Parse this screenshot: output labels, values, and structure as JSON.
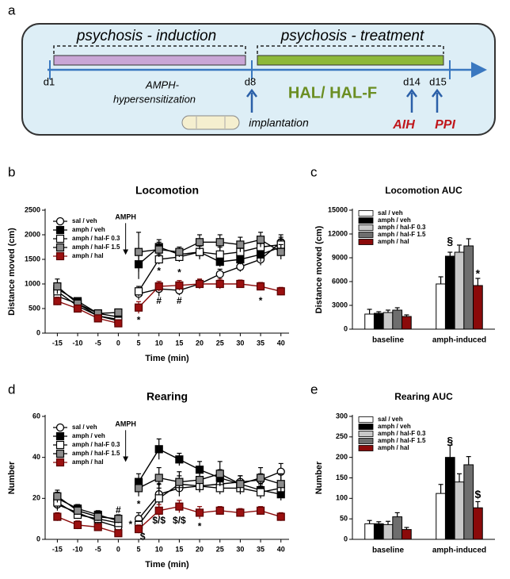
{
  "diagram": {
    "panel_label": "a",
    "phases": [
      "psychosis - induction",
      "psychosis - treatment"
    ],
    "days": [
      "d1",
      "d8",
      "d14",
      "d15"
    ],
    "induction_label": [
      "AMPH-",
      "hypersensitization"
    ],
    "treatment_label": "HAL/ HAL-F",
    "implant_label": "implantation",
    "tests": [
      "AIH",
      "PPI"
    ]
  },
  "chart_data": [
    {
      "type": "line",
      "panel_label": "b",
      "title": "Locomotion",
      "xlabel": "Time (min)",
      "ylabel": "Distance moved (cm)",
      "x": [
        -15,
        -10,
        -5,
        0,
        5,
        10,
        15,
        20,
        25,
        30,
        35,
        40
      ],
      "xlim": [
        -18,
        42
      ],
      "xticks": [
        -15,
        -10,
        -5,
        0,
        5,
        10,
        15,
        20,
        25,
        30,
        35,
        40
      ],
      "ylim": [
        0,
        2500
      ],
      "yticks": [
        0,
        500,
        1000,
        1500,
        2000,
        2500
      ],
      "legend": "upper left",
      "series": [
        {
          "name": "sal / veh",
          "color": "#ffffff",
          "marker": "o",
          "values": [
            750,
            600,
            350,
            280,
            800,
            900,
            870,
            1000,
            1200,
            1350,
            1500,
            1850
          ],
          "errors": [
            80,
            50,
            40,
            40,
            120,
            150,
            100,
            80,
            100,
            100,
            120,
            150
          ]
        },
        {
          "name": "amph / veh",
          "color": "#000000",
          "marker": "s",
          "values": [
            900,
            650,
            400,
            330,
            1400,
            1750,
            1600,
            1650,
            1450,
            1500,
            1600,
            1750
          ],
          "errors": [
            100,
            50,
            40,
            40,
            300,
            150,
            100,
            120,
            100,
            100,
            150,
            150
          ]
        },
        {
          "name": "amph / hal-F 0.3",
          "color": "#ffffff",
          "marker": "s",
          "values": [
            850,
            550,
            350,
            250,
            850,
            1500,
            1550,
            1650,
            1600,
            1650,
            1750,
            1800
          ],
          "errors": [
            80,
            50,
            40,
            40,
            100,
            100,
            100,
            150,
            150,
            150,
            150,
            150
          ]
        },
        {
          "name": "amph / hal-F 1.5",
          "color": "#8c8c8c",
          "marker": "s",
          "values": [
            950,
            600,
            400,
            420,
            1650,
            1700,
            1650,
            1850,
            1850,
            1800,
            1900,
            1650
          ],
          "errors": [
            150,
            60,
            60,
            60,
            400,
            150,
            100,
            150,
            150,
            150,
            150,
            150
          ]
        },
        {
          "name": "amph / hal",
          "color": "#9b1010",
          "marker": "s",
          "values": [
            650,
            500,
            300,
            200,
            520,
            950,
            970,
            1000,
            1000,
            1000,
            950,
            850
          ],
          "errors": [
            80,
            50,
            40,
            40,
            120,
            100,
            100,
            100,
            100,
            80,
            80,
            80
          ]
        }
      ],
      "annotations": [
        {
          "text": "AMPH",
          "x": 1.8,
          "y": 2350,
          "arrow": true
        },
        {
          "text": "*",
          "x": 5,
          "y": 250
        },
        {
          "text": "*",
          "x": 10,
          "y": 1250
        },
        {
          "text": "#",
          "x": 10,
          "y": 650
        },
        {
          "text": "*",
          "x": 15,
          "y": 1220
        },
        {
          "text": "#",
          "x": 15,
          "y": 650
        },
        {
          "text": "*",
          "x": 35,
          "y": 650
        }
      ]
    },
    {
      "type": "bar",
      "panel_label": "c",
      "title": "Locomotion AUC",
      "ylabel": "Distance moved (cm)",
      "categories": [
        "baseline",
        "amph-induced"
      ],
      "ylim": [
        0,
        15000
      ],
      "yticks": [
        0,
        3000,
        6000,
        9000,
        12000,
        15000
      ],
      "legend": "upper left",
      "series": [
        {
          "name": "sal / veh",
          "color": "#ffffff",
          "values": [
            1900,
            5700
          ],
          "errors": [
            600,
            900
          ]
        },
        {
          "name": "amph / veh",
          "color": "#000000",
          "values": [
            2000,
            9200
          ],
          "errors": [
            200,
            500
          ]
        },
        {
          "name": "amph / hal-F 0.3",
          "color": "#c8c8c8",
          "values": [
            2100,
            9700
          ],
          "errors": [
            300,
            900
          ]
        },
        {
          "name": "amph / hal-F 1.5",
          "color": "#6e6e6e",
          "values": [
            2400,
            10500
          ],
          "errors": [
            300,
            900
          ]
        },
        {
          "name": "amph / hal",
          "color": "#8b0a0a",
          "values": [
            1600,
            5500
          ],
          "errors": [
            200,
            900
          ]
        }
      ],
      "annotations": [
        {
          "text": "§",
          "category": "amph-induced",
          "series": "amph / veh",
          "y": 11000
        },
        {
          "text": "*",
          "category": "amph-induced",
          "series": "amph / hal",
          "y": 6900
        }
      ]
    },
    {
      "type": "line",
      "panel_label": "d",
      "title": "Rearing",
      "xlabel": "Time (min)",
      "ylabel": "Number",
      "x": [
        -15,
        -10,
        -5,
        0,
        5,
        10,
        15,
        20,
        25,
        30,
        35,
        40
      ],
      "xlim": [
        -18,
        42
      ],
      "xticks": [
        -15,
        -10,
        -5,
        0,
        5,
        10,
        15,
        20,
        25,
        30,
        35,
        40
      ],
      "ylim": [
        0,
        60
      ],
      "yticks": [
        0,
        20,
        40,
        60
      ],
      "legend": "upper left",
      "series": [
        {
          "name": "sal / veh",
          "color": "#ffffff",
          "marker": "o",
          "values": [
            17,
            13,
            9,
            6,
            10,
            22,
            25,
            26,
            27,
            28,
            29,
            33
          ],
          "errors": [
            3,
            2,
            2,
            2,
            3,
            5,
            4,
            3,
            3,
            3,
            3,
            4
          ]
        },
        {
          "name": "amph / veh",
          "color": "#000000",
          "marker": "s",
          "values": [
            20,
            15,
            12,
            9,
            28,
            44,
            39,
            34,
            30,
            27,
            24,
            22
          ],
          "errors": [
            3,
            2,
            2,
            2,
            4,
            5,
            3,
            4,
            4,
            4,
            3,
            3
          ]
        },
        {
          "name": "amph / hal-F 0.3",
          "color": "#ffffff",
          "marker": "s",
          "values": [
            18,
            12,
            10,
            8,
            7,
            20,
            27,
            26,
            25,
            25,
            23,
            25
          ],
          "errors": [
            3,
            2,
            2,
            2,
            2,
            5,
            4,
            3,
            3,
            3,
            3,
            3
          ]
        },
        {
          "name": "amph / hal-F 1.5",
          "color": "#8c8c8c",
          "marker": "s",
          "values": [
            21,
            14,
            11,
            10,
            25,
            30,
            28,
            29,
            32,
            27,
            30,
            27
          ],
          "errors": [
            3,
            2,
            2,
            2,
            4,
            5,
            5,
            6,
            6,
            4,
            5,
            5
          ]
        },
        {
          "name": "amph / hal",
          "color": "#9b1010",
          "marker": "s",
          "values": [
            11,
            7,
            6,
            3,
            5,
            14,
            16,
            13,
            14,
            13,
            14,
            11
          ],
          "errors": [
            2,
            2,
            1,
            1,
            2,
            3,
            3,
            3,
            2,
            2,
            2,
            2
          ]
        }
      ],
      "annotations": [
        {
          "text": "AMPH",
          "x": 1.8,
          "y": 56,
          "arrow": true
        },
        {
          "text": "#",
          "x": 0,
          "y": 14
        },
        {
          "text": "*",
          "x": 5,
          "y": 17
        },
        {
          "text": "*",
          "x": 3,
          "y": 7
        },
        {
          "text": "$",
          "x": 6,
          "y": 1
        },
        {
          "text": "*",
          "x": 10,
          "y": 26
        },
        {
          "text": "$/$",
          "x": 10,
          "y": 9
        },
        {
          "text": "$/$",
          "x": 15,
          "y": 9
        },
        {
          "text": "*",
          "x": 20,
          "y": 6
        }
      ]
    },
    {
      "type": "bar",
      "panel_label": "e",
      "title": "Rearing AUC",
      "ylabel": "Number",
      "categories": [
        "baseline",
        "amph-induced"
      ],
      "ylim": [
        0,
        300
      ],
      "yticks": [
        0,
        50,
        100,
        150,
        200,
        250,
        300
      ],
      "legend": "upper left",
      "series": [
        {
          "name": "sal / veh",
          "color": "#ffffff",
          "values": [
            38,
            112
          ],
          "errors": [
            8,
            22
          ]
        },
        {
          "name": "amph / veh",
          "color": "#000000",
          "values": [
            38,
            200
          ],
          "errors": [
            5,
            30
          ]
        },
        {
          "name": "amph / hal-F 0.3",
          "color": "#c8c8c8",
          "values": [
            36,
            140
          ],
          "errors": [
            8,
            20
          ]
        },
        {
          "name": "amph / hal-F 1.5",
          "color": "#6e6e6e",
          "values": [
            55,
            182
          ],
          "errors": [
            10,
            20
          ]
        },
        {
          "name": "amph / hal",
          "color": "#8b0a0a",
          "values": [
            24,
            77
          ],
          "errors": [
            5,
            15
          ]
        }
      ],
      "annotations": [
        {
          "text": "§",
          "category": "amph-induced",
          "series": "amph / veh",
          "y": 238
        },
        {
          "text": "$",
          "category": "amph-induced",
          "series": "amph / hal",
          "y": 108
        }
      ]
    }
  ]
}
